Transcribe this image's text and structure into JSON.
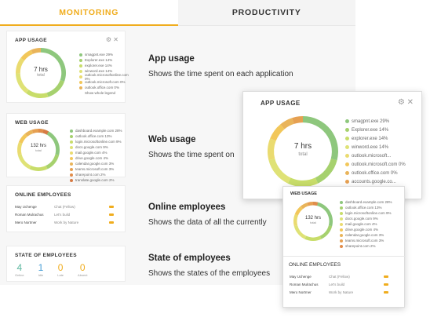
{
  "tabs": [
    {
      "label": "MONITORING"
    },
    {
      "label": "PRODUCTIVITY"
    }
  ],
  "app_usage_card": {
    "title": "APP USAGE",
    "donut_value": "7 hrs",
    "donut_sub": "total",
    "legend": [
      {
        "label": "smagpnt.exe 29%",
        "color": "#8ec77d"
      },
      {
        "label": "Explorer.exe 14%",
        "color": "#a6d16e"
      },
      {
        "label": "explorer.exe 14%",
        "color": "#c8dd6a"
      },
      {
        "label": "winword.exe 14%",
        "color": "#dfe276"
      },
      {
        "label": "outlook.microsoftonline.com 0%",
        "color": "#eadb70"
      },
      {
        "label": "outlook.microsoft.com 0%",
        "color": "#f2c75a"
      },
      {
        "label": "outlook.office.com 0%",
        "color": "#e9b45a"
      },
      {
        "label": "Show whole legend",
        "color": "#ffffff"
      }
    ]
  },
  "web_usage_card": {
    "title": "WEB USAGE",
    "donut_value": "132 hrs",
    "donut_sub": "total",
    "legend": [
      {
        "label": "dashboard.example.com 28%",
        "color": "#8ec77d"
      },
      {
        "label": "outlook.office.com 13%",
        "color": "#a6d16e"
      },
      {
        "label": "login.microsoftonline.com 9%",
        "color": "#c8dd6a"
      },
      {
        "label": "docs.google.com 9%",
        "color": "#dfe276"
      },
      {
        "label": "mail.google.com 4%",
        "color": "#eadb70"
      },
      {
        "label": "drive.google.com 4%",
        "color": "#f2c75a"
      },
      {
        "label": "calendar.google.com 3%",
        "color": "#e9b45a"
      },
      {
        "label": "teams.microsoft.com 3%",
        "color": "#e6a052"
      },
      {
        "label": "sharepoint.com 2%",
        "color": "#e18c4a"
      },
      {
        "label": "translate.google.com 2%",
        "color": "#d77b45"
      }
    ]
  },
  "online_employees_card": {
    "title": "ONLINE EMPLOYEES",
    "rows": [
      {
        "name": "May Uchenge",
        "status": "Chat (Fellow)"
      },
      {
        "name": "Roman Mulrachus",
        "status": "Let's build"
      },
      {
        "name": "Mero Nortmer",
        "status": "Work by Nature"
      }
    ]
  },
  "state_card": {
    "title": "STATE OF EMPLOYEES",
    "items": [
      {
        "value": "4",
        "label": "Online",
        "color": "#5db8a0"
      },
      {
        "value": "1",
        "label": "Idle",
        "color": "#4a9fd6"
      },
      {
        "value": "0",
        "label": "Late",
        "color": "#f0ad1e"
      },
      {
        "value": "0",
        "label": "Absent",
        "color": "#f0ad1e"
      }
    ]
  },
  "features": [
    {
      "title": "App usage",
      "desc": "Shows the time spent on each application"
    },
    {
      "title": "Web usage",
      "desc": "Shows the time spent on"
    },
    {
      "title": "Online employees",
      "desc": "Shows the data of all the currently"
    },
    {
      "title": "State of employees",
      "desc": "Shows the states of the employees"
    }
  ],
  "overlay_app": {
    "title": "APP USAGE",
    "donut_value": "7 hrs",
    "donut_sub": "total",
    "legend": [
      {
        "label": "smagpnt.exe 29%",
        "color": "#8ec77d"
      },
      {
        "label": "Explorer.exe 14%",
        "color": "#a6d16e"
      },
      {
        "label": "explorer.exe 14%",
        "color": "#c8dd6a"
      },
      {
        "label": "winword.exe 14%",
        "color": "#dfe276"
      },
      {
        "label": "outlook.microsoft...",
        "color": "#eadb70"
      },
      {
        "label": "outlook.microsoft.com 0%",
        "color": "#f2c75a"
      },
      {
        "label": "outlook.office.com 0%",
        "color": "#e9b45a"
      },
      {
        "label": "accounts.google.co...",
        "color": "#e6a052"
      }
    ]
  },
  "overlay_web": {
    "title": "WEB USAGE",
    "donut_value": "132 hrs",
    "donut_sub": "total",
    "legend": [
      {
        "label": "dashboard.example.com 28%",
        "color": "#8ec77d"
      },
      {
        "label": "outlook.office.com 13%",
        "color": "#a6d16e"
      },
      {
        "label": "login.microsoftonline.com 9%",
        "color": "#c8dd6a"
      },
      {
        "label": "docs.google.com 9%",
        "color": "#dfe276"
      },
      {
        "label": "mail.google.com 4%",
        "color": "#eadb70"
      },
      {
        "label": "drive.google.com 4%",
        "color": "#f2c75a"
      },
      {
        "label": "calendar.google.com 3%",
        "color": "#e9b45a"
      },
      {
        "label": "teams.microsoft.com 3%",
        "color": "#e6a052"
      },
      {
        "label": "sharepoint.com 2%",
        "color": "#e18c4a"
      }
    ]
  },
  "overlay_online": {
    "title": "ONLINE EMPLOYEES",
    "rows": [
      {
        "name": "May Uchenge",
        "status": "Chat (Fellow)"
      },
      {
        "name": "Roman Mulrachus",
        "status": "Let's build"
      },
      {
        "name": "Mero Nortmer",
        "status": "Work by Nature"
      }
    ]
  },
  "controls": {
    "gear": "⚙",
    "close": "✕"
  }
}
